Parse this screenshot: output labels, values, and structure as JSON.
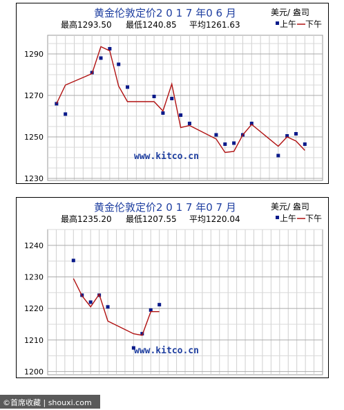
{
  "chart_data": [
    {
      "type": "line",
      "title": "黄金伦敦定价2 0 1 7 年0 6 月",
      "unit": "美元/ 盎司",
      "stats": {
        "high_label": "最高",
        "high": "1293.50",
        "low_label": "最低",
        "low": "1240.85",
        "avg_label": "平均",
        "avg": "1261.63"
      },
      "legend": {
        "am": "上午",
        "pm": "下午"
      },
      "watermark": "www.kitco.cn",
      "xlim": [
        0,
        31
      ],
      "xticks": [
        1,
        3,
        5,
        7,
        9,
        11,
        13,
        15,
        17,
        19,
        21,
        23,
        25,
        27,
        29,
        30
      ],
      "yticks": [
        1230,
        1250,
        1270,
        1290
      ],
      "ylim": [
        1229,
        1299
      ],
      "series": [
        {
          "name": "上午",
          "style": "markers",
          "x": [
            1,
            2,
            5,
            6,
            7,
            8,
            9,
            12,
            13,
            14,
            15,
            16,
            19,
            20,
            21,
            22,
            23,
            26,
            27,
            28,
            29
          ],
          "y": [
            1266.0,
            1261.0,
            1281.0,
            1288.0,
            1292.5,
            1285.0,
            1274.0,
            1269.5,
            1261.5,
            1268.5,
            1260.5,
            1256.5,
            1251.0,
            1246.5,
            1247.0,
            1251.0,
            1256.5,
            1241.0,
            1250.5,
            1251.5,
            1246.5
          ]
        },
        {
          "name": "下午",
          "style": "line",
          "x": [
            1,
            2,
            5,
            6,
            7,
            8,
            9,
            12,
            13,
            14,
            15,
            16,
            19,
            20,
            21,
            22,
            23,
            26,
            27,
            28,
            29
          ],
          "y": [
            1266.0,
            1275.0,
            1280.5,
            1293.5,
            1291.5,
            1274.5,
            1267.0,
            1267.0,
            1262.5,
            1275.5,
            1254.5,
            1255.5,
            1249.0,
            1242.5,
            1243.0,
            1251.0,
            1256.0,
            1245.5,
            1250.0,
            1248.0,
            1243.5
          ]
        }
      ]
    },
    {
      "type": "line",
      "title": "黄金伦敦定价2 0 1 7 年0 7 月",
      "unit": "美元/ 盎司",
      "stats": {
        "high_label": "最高",
        "high": "1235.20",
        "low_label": "最低",
        "low": "1207.55",
        "avg_label": "平均",
        "avg": "1220.04"
      },
      "legend": {
        "am": "上午",
        "pm": "下午"
      },
      "watermark": "www.kitco.cn",
      "xlim": [
        0,
        32
      ],
      "xticks": [
        1,
        3,
        5,
        7,
        9,
        11,
        13,
        15,
        17,
        19,
        21,
        23,
        25,
        27,
        29,
        31
      ],
      "yticks": [
        1200,
        1210,
        1220,
        1230,
        1240
      ],
      "ylim": [
        1199,
        1245
      ],
      "series": [
        {
          "name": "上午",
          "style": "markers",
          "x": [
            3,
            4,
            5,
            6,
            7,
            10,
            11,
            12,
            13
          ],
          "y": [
            1235.2,
            1224.2,
            1222.0,
            1224.2,
            1220.5,
            1207.5,
            1212.0,
            1219.5,
            1221.2
          ]
        },
        {
          "name": "下午",
          "style": "line",
          "x": [
            3,
            4,
            5,
            6,
            7,
            10,
            11,
            12,
            13
          ],
          "y": [
            1229.5,
            1224.0,
            1220.5,
            1224.5,
            1216.0,
            1212.0,
            1211.5,
            1219.0,
            1219.0
          ]
        }
      ]
    }
  ],
  "footer": {
    "credit": "©首席收藏 | shouxi.com"
  }
}
